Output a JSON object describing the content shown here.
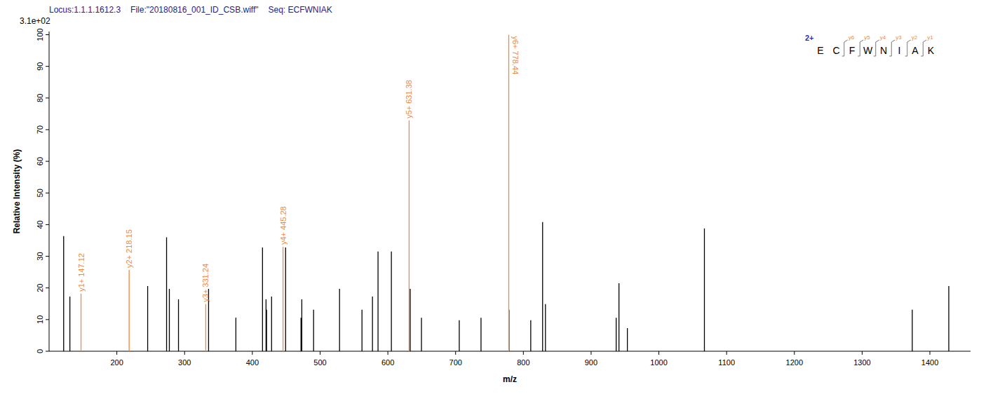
{
  "chart_data": {
    "type": "stem",
    "title": [
      "Locus:1.1.1.1612.3",
      "File:\"20180816_001_ID_CSB.wiff\"",
      "Seq: ECFWNIAK"
    ],
    "y_label": "Relative  Intensity (%)",
    "x_label": "m/z",
    "max_intensity": "3.1e+02",
    "xlim": [
      100,
      1460
    ],
    "ylim": [
      0,
      101
    ],
    "xticks": [
      200,
      300,
      400,
      500,
      600,
      700,
      800,
      900,
      1000,
      1100,
      1200,
      1300,
      1400
    ],
    "yticks": [
      0,
      10,
      20,
      30,
      40,
      50,
      60,
      70,
      80,
      90,
      100
    ],
    "grid": false,
    "annotations": {
      "charge": "2+",
      "sequence": [
        "E",
        "C",
        "F",
        "W",
        "N",
        "I",
        "A",
        "K"
      ],
      "fragments": [
        "y6",
        "y5",
        "y4",
        "y3",
        "y2",
        "y1"
      ]
    },
    "series": [
      {
        "color": "#000000",
        "x": [
          121.5,
          130.7,
          245.5,
          273.4,
          277.5,
          291.0,
          335.4,
          375.7,
          415.0,
          420.2,
          421.0,
          428.4,
          449.1,
          471.8,
          473.0,
          490.4,
          528.7,
          561.8,
          577.3,
          585.5,
          605.2,
          633.0,
          649.6,
          705.4,
          737.5,
          778.8,
          810.9,
          828.4,
          832.6,
          937.0,
          941.1,
          953.5,
          1067.2,
          1374.0,
          1427.9
        ],
        "values": [
          36.4,
          17.3,
          20.6,
          36.0,
          19.7,
          16.4,
          19.7,
          10.6,
          32.8,
          16.4,
          13.1,
          17.3,
          32.8,
          10.6,
          16.4,
          13.1,
          19.7,
          13.1,
          17.3,
          31.5,
          31.5,
          19.7,
          10.6,
          9.8,
          10.6,
          13.1,
          9.8,
          40.8,
          14.9,
          10.6,
          21.5,
          7.3,
          38.8,
          13.1,
          20.6
        ]
      },
      {
        "color": "#f0883e",
        "x": [
          147.12,
          218.15,
          331.24,
          445.28,
          631.38,
          778.44
        ],
        "values": [
          18.2,
          25.7,
          14.9,
          33.0,
          72.9,
          100.0
        ],
        "peak_labels": [
          "y1+ 147.12",
          "y2+ 218.15",
          "y3+ 331.24",
          "y4+ 445.28",
          "y5+ 631.38",
          "y6+ 778.44"
        ]
      }
    ]
  }
}
